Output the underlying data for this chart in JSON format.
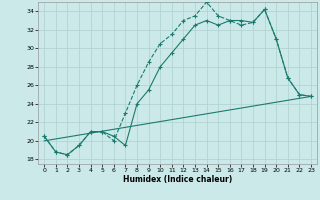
{
  "xlabel": "Humidex (Indice chaleur)",
  "bg_color": "#cce9e9",
  "line_color": "#1a7a6e",
  "grid_color": "#afd0d0",
  "xlim": [
    -0.5,
    23.5
  ],
  "ylim": [
    17.5,
    35.0
  ],
  "yticks": [
    18,
    20,
    22,
    24,
    26,
    28,
    30,
    32,
    34
  ],
  "xticks": [
    0,
    1,
    2,
    3,
    4,
    5,
    6,
    7,
    8,
    9,
    10,
    11,
    12,
    13,
    14,
    15,
    16,
    17,
    18,
    19,
    20,
    21,
    22,
    23
  ],
  "line1_x": [
    0,
    1,
    2,
    3,
    4,
    5,
    6,
    7,
    8,
    9,
    10,
    11,
    12,
    13,
    14,
    15,
    16,
    17,
    18,
    19,
    20,
    21,
    22,
    23
  ],
  "line1_y": [
    20.5,
    18.8,
    18.5,
    19.5,
    21.0,
    21.0,
    20.0,
    23.0,
    26.0,
    28.5,
    30.5,
    31.5,
    33.0,
    33.5,
    35.0,
    33.5,
    33.0,
    32.5,
    32.8,
    34.2,
    31.0,
    26.8,
    25.0,
    24.8
  ],
  "line2_x": [
    0,
    1,
    2,
    3,
    4,
    5,
    6,
    7,
    8,
    9,
    10,
    11,
    12,
    13,
    14,
    15,
    16,
    17,
    18,
    19,
    20,
    21,
    22,
    23
  ],
  "line2_y": [
    20.5,
    18.8,
    18.5,
    19.5,
    21.0,
    21.0,
    20.5,
    19.5,
    24.0,
    25.5,
    28.0,
    29.5,
    31.0,
    32.5,
    33.0,
    32.5,
    33.0,
    33.0,
    32.8,
    34.2,
    31.0,
    26.8,
    25.0,
    24.8
  ],
  "line3_x": [
    0,
    23
  ],
  "line3_y": [
    20.0,
    24.8
  ]
}
